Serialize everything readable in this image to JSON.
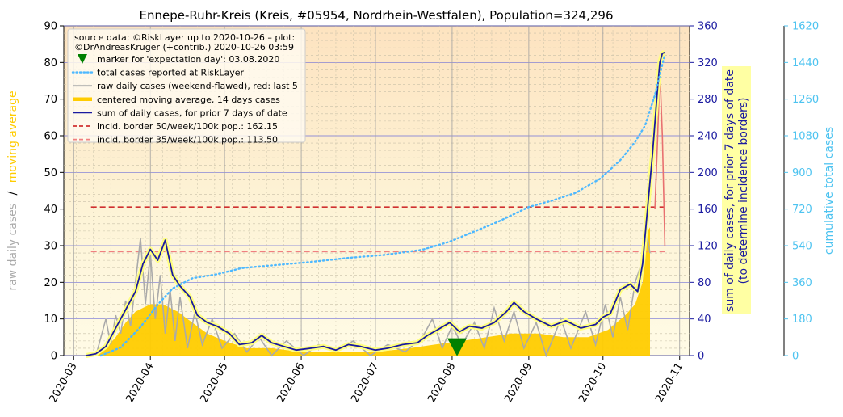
{
  "chart_data": {
    "type": "line",
    "title": "Ennepe-Ruhr-Kreis (Kreis, #05954, Nordrhein-Westfalen), Population=324,296",
    "x_axis": {
      "type": "date",
      "range": [
        "2020-02-26",
        "2020-11-05"
      ],
      "tick_labels": [
        "2020-03",
        "2020-04",
        "2020-05",
        "2020-06",
        "2020-07",
        "2020-08",
        "2020-09",
        "2020-10",
        "2020-11"
      ],
      "tick_dates": [
        "2020-03-01",
        "2020-04-01",
        "2020-05-01",
        "2020-06-01",
        "2020-07-01",
        "2020-08-01",
        "2020-09-01",
        "2020-10-01",
        "2020-11-01"
      ]
    },
    "y_left": {
      "label_part1": "raw daily cases",
      "label_sep": "/",
      "label_part2": "moving average",
      "range": [
        0,
        90
      ],
      "ticks": [
        "0",
        "10",
        "20",
        "30",
        "40",
        "50",
        "60",
        "70",
        "80",
        "90"
      ]
    },
    "y_right1": {
      "label_line1": "sum of daily cases, for prior 7 days of date",
      "label_line2": "(to determine incidence borders)",
      "range": [
        0,
        360
      ],
      "ticks": [
        "0",
        "40",
        "80",
        "120",
        "160",
        "200",
        "240",
        "280",
        "320",
        "360"
      ]
    },
    "y_right2": {
      "label": "cumulative total cases",
      "range": [
        0,
        1620
      ],
      "ticks": [
        "0",
        "180",
        "360",
        "540",
        "720",
        "900",
        "1080",
        "1260",
        "1440",
        "1620"
      ]
    },
    "grid": true,
    "legend": {
      "placement": "top-left",
      "header_line1": "source data: ©RiskLayer up to 2020-10-26 – plot:",
      "header_line2": "©DrAndreasKruger (+contrib.) 2020-10-26 03:59",
      "entries": [
        {
          "label": "marker for 'expectation day': 03.08.2020",
          "style": "triangle",
          "color": "#008000"
        },
        {
          "label": "total cases reported at RiskLayer",
          "style": "dotted",
          "color": "#4db8ff"
        },
        {
          "label": "raw daily cases (weekend-flawed), red: last 5",
          "style": "line",
          "color": "#aaaaaa"
        },
        {
          "label": "centered moving average, 14 days cases",
          "style": "thick",
          "color": "#ffcc00"
        },
        {
          "label": "sum of daily cases, for prior 7 days of date",
          "style": "line",
          "color": "#1a1aa0"
        },
        {
          "label": "incid. border 50/week/100k pop.: 162.15",
          "style": "dashed",
          "color": "#d03030"
        },
        {
          "label": "incid. border 35/week/100k pop.: 113.50",
          "style": "dashed",
          "color": "#f08080"
        }
      ]
    },
    "expectation_day": "2020-08-03",
    "incidence_border_50": 162.15,
    "incidence_border_35": 113.5,
    "series": [
      {
        "name": "sum of daily cases, for prior 7 days of date",
        "axis": "right1",
        "color": "#1a1aa0",
        "points": [
          [
            "2020-03-06",
            0
          ],
          [
            "2020-03-10",
            2
          ],
          [
            "2020-03-14",
            10
          ],
          [
            "2020-03-18",
            30
          ],
          [
            "2020-03-22",
            50
          ],
          [
            "2020-03-26",
            70
          ],
          [
            "2020-03-29",
            100
          ],
          [
            "2020-04-01",
            116
          ],
          [
            "2020-04-04",
            104
          ],
          [
            "2020-04-07",
            126
          ],
          [
            "2020-04-10",
            88
          ],
          [
            "2020-04-13",
            76
          ],
          [
            "2020-04-17",
            64
          ],
          [
            "2020-04-20",
            44
          ],
          [
            "2020-04-24",
            36
          ],
          [
            "2020-04-28",
            32
          ],
          [
            "2020-05-03",
            24
          ],
          [
            "2020-05-07",
            12
          ],
          [
            "2020-05-12",
            14
          ],
          [
            "2020-05-16",
            22
          ],
          [
            "2020-05-20",
            14
          ],
          [
            "2020-05-25",
            10
          ],
          [
            "2020-05-30",
            6
          ],
          [
            "2020-06-05",
            8
          ],
          [
            "2020-06-10",
            10
          ],
          [
            "2020-06-15",
            6
          ],
          [
            "2020-06-20",
            12
          ],
          [
            "2020-06-25",
            10
          ],
          [
            "2020-07-01",
            6
          ],
          [
            "2020-07-06",
            8
          ],
          [
            "2020-07-12",
            12
          ],
          [
            "2020-07-18",
            14
          ],
          [
            "2020-07-22",
            22
          ],
          [
            "2020-07-26",
            28
          ],
          [
            "2020-07-31",
            36
          ],
          [
            "2020-08-04",
            26
          ],
          [
            "2020-08-08",
            32
          ],
          [
            "2020-08-13",
            30
          ],
          [
            "2020-08-18",
            36
          ],
          [
            "2020-08-23",
            48
          ],
          [
            "2020-08-26",
            58
          ],
          [
            "2020-08-30",
            48
          ],
          [
            "2020-09-04",
            40
          ],
          [
            "2020-09-10",
            32
          ],
          [
            "2020-09-16",
            38
          ],
          [
            "2020-09-22",
            30
          ],
          [
            "2020-09-28",
            34
          ],
          [
            "2020-10-01",
            42
          ],
          [
            "2020-10-04",
            46
          ],
          [
            "2020-10-08",
            72
          ],
          [
            "2020-10-12",
            78
          ],
          [
            "2020-10-15",
            70
          ],
          [
            "2020-10-17",
            100
          ],
          [
            "2020-10-19",
            160
          ],
          [
            "2020-10-21",
            220
          ],
          [
            "2020-10-23",
            290
          ],
          [
            "2020-10-24",
            320
          ],
          [
            "2020-10-25",
            330
          ],
          [
            "2020-10-26",
            331
          ]
        ]
      },
      {
        "name": "total cases reported at RiskLayer",
        "axis": "right2",
        "color": "#4db8ff",
        "points": [
          [
            "2020-03-12",
            0
          ],
          [
            "2020-03-20",
            40
          ],
          [
            "2020-03-28",
            140
          ],
          [
            "2020-04-04",
            250
          ],
          [
            "2020-04-10",
            330
          ],
          [
            "2020-04-18",
            380
          ],
          [
            "2020-04-28",
            400
          ],
          [
            "2020-05-08",
            430
          ],
          [
            "2020-05-22",
            445
          ],
          [
            "2020-06-05",
            460
          ],
          [
            "2020-06-20",
            480
          ],
          [
            "2020-07-05",
            495
          ],
          [
            "2020-07-20",
            520
          ],
          [
            "2020-07-31",
            560
          ],
          [
            "2020-08-10",
            610
          ],
          [
            "2020-08-20",
            660
          ],
          [
            "2020-09-01",
            730
          ],
          [
            "2020-09-10",
            760
          ],
          [
            "2020-09-20",
            800
          ],
          [
            "2020-09-30",
            870
          ],
          [
            "2020-10-08",
            960
          ],
          [
            "2020-10-14",
            1050
          ],
          [
            "2020-10-18",
            1130
          ],
          [
            "2020-10-22",
            1280
          ],
          [
            "2020-10-25",
            1430
          ],
          [
            "2020-10-26",
            1480
          ]
        ]
      },
      {
        "name": "raw daily cases (weekend-flawed), red: last 5",
        "axis": "left",
        "color": "#aaaaaa",
        "points": [
          [
            "2020-03-10",
            0
          ],
          [
            "2020-03-14",
            10
          ],
          [
            "2020-03-16",
            3
          ],
          [
            "2020-03-18",
            11
          ],
          [
            "2020-03-20",
            6
          ],
          [
            "2020-03-22",
            15
          ],
          [
            "2020-03-24",
            8
          ],
          [
            "2020-03-26",
            20
          ],
          [
            "2020-03-28",
            32
          ],
          [
            "2020-03-30",
            14
          ],
          [
            "2020-04-01",
            28
          ],
          [
            "2020-04-03",
            10
          ],
          [
            "2020-04-05",
            22
          ],
          [
            "2020-04-07",
            6
          ],
          [
            "2020-04-09",
            18
          ],
          [
            "2020-04-11",
            4
          ],
          [
            "2020-04-13",
            16
          ],
          [
            "2020-04-16",
            2
          ],
          [
            "2020-04-19",
            12
          ],
          [
            "2020-04-22",
            3
          ],
          [
            "2020-04-26",
            10
          ],
          [
            "2020-04-30",
            2
          ],
          [
            "2020-05-05",
            6
          ],
          [
            "2020-05-10",
            1
          ],
          [
            "2020-05-15",
            5
          ],
          [
            "2020-05-20",
            0
          ],
          [
            "2020-05-26",
            4
          ],
          [
            "2020-06-02",
            0
          ],
          [
            "2020-06-08",
            3
          ],
          [
            "2020-06-15",
            1
          ],
          [
            "2020-06-22",
            4
          ],
          [
            "2020-06-29",
            0
          ],
          [
            "2020-07-06",
            3
          ],
          [
            "2020-07-13",
            1
          ],
          [
            "2020-07-20",
            5
          ],
          [
            "2020-07-24",
            10
          ],
          [
            "2020-07-28",
            2
          ],
          [
            "2020-08-01",
            8
          ],
          [
            "2020-08-05",
            3
          ],
          [
            "2020-08-10",
            9
          ],
          [
            "2020-08-14",
            2
          ],
          [
            "2020-08-18",
            13
          ],
          [
            "2020-08-22",
            4
          ],
          [
            "2020-08-26",
            12
          ],
          [
            "2020-08-30",
            2
          ],
          [
            "2020-09-04",
            9
          ],
          [
            "2020-09-08",
            0
          ],
          [
            "2020-09-14",
            10
          ],
          [
            "2020-09-18",
            2
          ],
          [
            "2020-09-24",
            12
          ],
          [
            "2020-09-28",
            3
          ],
          [
            "2020-10-02",
            14
          ],
          [
            "2020-10-05",
            5
          ],
          [
            "2020-10-08",
            16
          ],
          [
            "2020-10-11",
            7
          ],
          [
            "2020-10-14",
            20
          ],
          [
            "2020-10-17",
            26
          ],
          [
            "2020-10-19",
            32
          ],
          [
            "2020-10-20",
            28
          ]
        ]
      },
      {
        "name": "raw daily cases last 5",
        "axis": "left",
        "color": "#e87070",
        "points": [
          [
            "2020-10-22",
            40
          ],
          [
            "2020-10-23",
            58
          ],
          [
            "2020-10-24",
            78
          ],
          [
            "2020-10-25",
            60
          ],
          [
            "2020-10-26",
            30
          ]
        ]
      },
      {
        "name": "centered moving average, 14 days cases",
        "axis": "left",
        "color": "#ffcc00",
        "points": [
          [
            "2020-03-08",
            0
          ],
          [
            "2020-03-14",
            2
          ],
          [
            "2020-03-18",
            5
          ],
          [
            "2020-03-22",
            9
          ],
          [
            "2020-03-26",
            12
          ],
          [
            "2020-04-01",
            14
          ],
          [
            "2020-04-06",
            14
          ],
          [
            "2020-04-12",
            12
          ],
          [
            "2020-04-18",
            9
          ],
          [
            "2020-04-24",
            6
          ],
          [
            "2020-05-01",
            4
          ],
          [
            "2020-05-10",
            2
          ],
          [
            "2020-05-20",
            2
          ],
          [
            "2020-06-01",
            1
          ],
          [
            "2020-06-15",
            1
          ],
          [
            "2020-07-01",
            1
          ],
          [
            "2020-07-15",
            2
          ],
          [
            "2020-07-25",
            3
          ],
          [
            "2020-08-05",
            4
          ],
          [
            "2020-08-15",
            5
          ],
          [
            "2020-08-25",
            6
          ],
          [
            "2020-09-05",
            6
          ],
          [
            "2020-09-15",
            5
          ],
          [
            "2020-09-25",
            5
          ],
          [
            "2020-10-03",
            7
          ],
          [
            "2020-10-10",
            11
          ],
          [
            "2020-10-14",
            14
          ],
          [
            "2020-10-17",
            20
          ],
          [
            "2020-10-19",
            34
          ],
          [
            "2020-10-20",
            35
          ]
        ]
      }
    ]
  }
}
